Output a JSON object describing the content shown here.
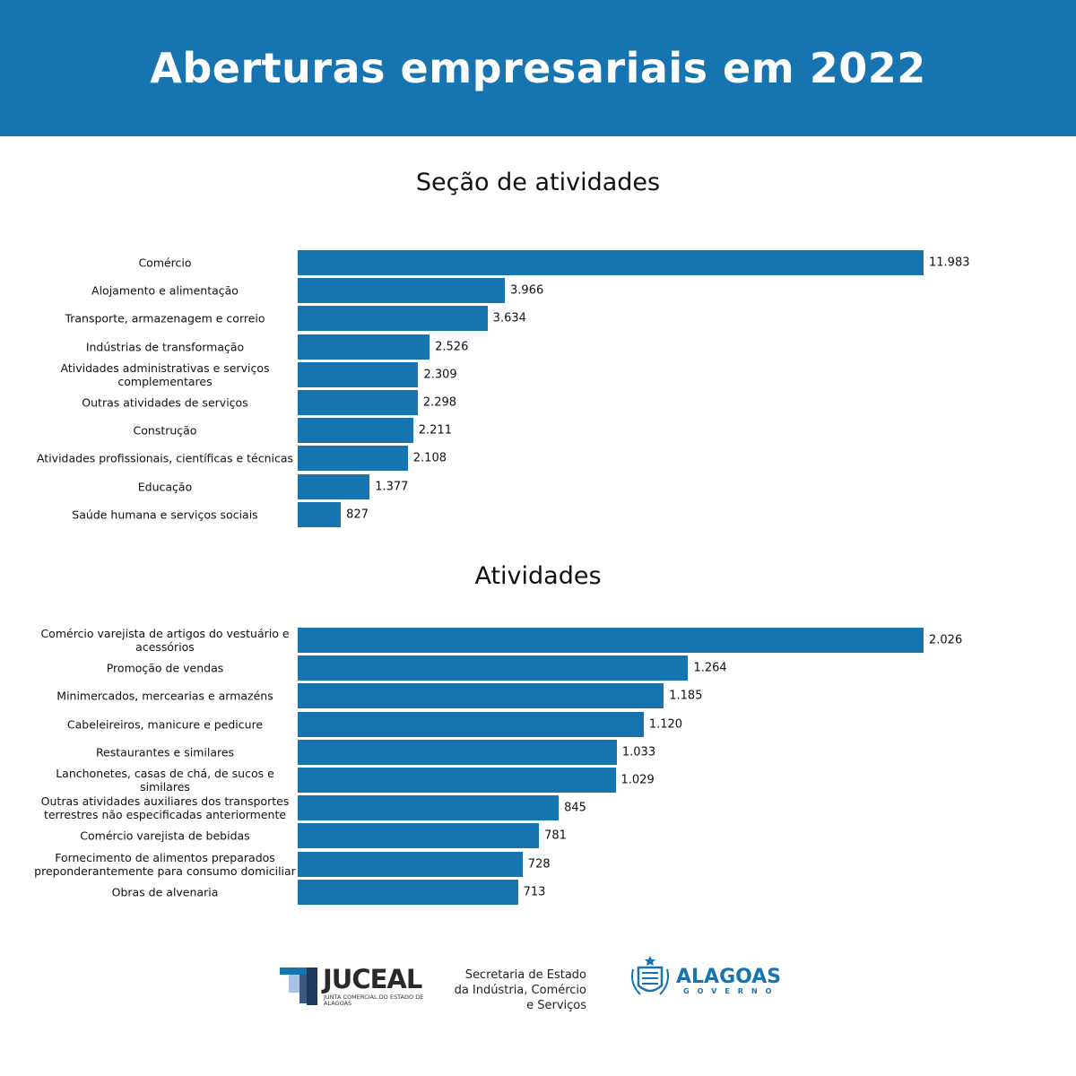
{
  "header": {
    "title": "Aberturas empresariais em 2022"
  },
  "chart_data": [
    {
      "type": "bar",
      "orientation": "horizontal",
      "title": "Seção de atividades",
      "categories": [
        "Comércio",
        "Alojamento e alimentação",
        "Transporte, armazenagem e correio",
        "Indústrias de transformação",
        "Atividades administrativas e serviços complementares",
        "Outras atividades de serviços",
        "Construção",
        "Atividades profissionais, científicas e técnicas",
        "Educação",
        "Saúde humana e serviços sociais"
      ],
      "values": [
        11983,
        3966,
        3634,
        2526,
        2309,
        2298,
        2211,
        2108,
        1377,
        827
      ],
      "value_labels": [
        "11.983",
        "3.966",
        "3.634",
        "2.526",
        "2.309",
        "2.298",
        "2.211",
        "2.108",
        "1.377",
        "827"
      ],
      "color": "#1674b1",
      "grid": false
    },
    {
      "type": "bar",
      "orientation": "horizontal",
      "title": "Atividades",
      "categories": [
        "Comércio varejista de artigos do vestuário e acessórios",
        "Promoção de vendas",
        "Minimercados, mercearias e armazéns",
        "Cabeleireiros, manicure e pedicure",
        "Restaurantes e similares",
        "Lanchonetes, casas de chá, de sucos e similares",
        "Outras atividades auxiliares dos transportes terrestres não especificadas anteriormente",
        "Comércio varejista de bebidas",
        "Fornecimento de alimentos preparados preponderantemente para consumo domiciliar",
        "Obras de alvenaria"
      ],
      "values": [
        2026,
        1264,
        1185,
        1120,
        1033,
        1029,
        845,
        781,
        728,
        713
      ],
      "value_labels": [
        "2.026",
        "1.264",
        "1.185",
        "1.120",
        "1.033",
        "1.029",
        "845",
        "781",
        "728",
        "713"
      ],
      "color": "#1674b1",
      "grid": false
    }
  ],
  "footer": {
    "juceal": {
      "name": "JUCEAL",
      "subtitle": "JUNTA COMERCIAL DO ESTADO DE ALAGOAS"
    },
    "secretaria": "Secretaria de Estado da Indústria, Comércio e Serviços",
    "alagoas": {
      "name": "ALAGOAS",
      "subtitle": "GOVERNO"
    }
  }
}
